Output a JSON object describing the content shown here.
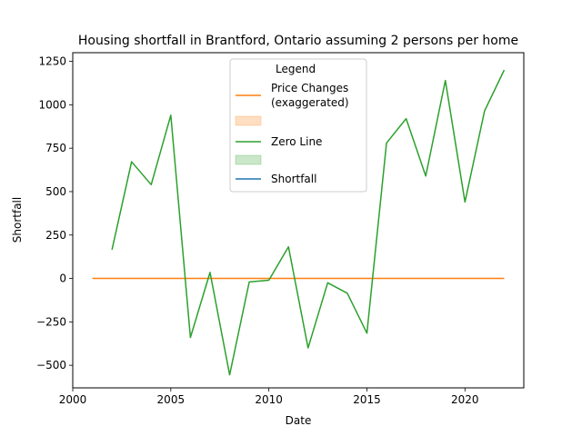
{
  "chart_data": {
    "type": "line",
    "title": "Housing shortfall in Brantford, Ontario assuming 2 persons per home",
    "xlabel": "Date",
    "ylabel": "Shortfall",
    "xlim": [
      2000,
      2023
    ],
    "ylim": [
      -630,
      1300
    ],
    "xticks": [
      2000,
      2005,
      2010,
      2015,
      2020
    ],
    "xtick_labels": [
      "2000",
      "2005",
      "2010",
      "2015",
      "2020"
    ],
    "yticks": [
      -500,
      -250,
      0,
      250,
      500,
      750,
      1000,
      1250
    ],
    "ytick_labels": [
      "−500",
      "−250",
      "0",
      "250",
      "500",
      "750",
      "1000",
      "1250"
    ],
    "grid": false,
    "legend": {
      "title": "Legend",
      "placement": "upper-center",
      "entries": [
        {
          "kind": "line",
          "label_lines": [
            "Price Changes",
            "(exaggerated)"
          ],
          "color": "#ff7f0e"
        },
        {
          "kind": "patch",
          "label_lines": [],
          "color": "#ff7f0e"
        },
        {
          "kind": "line",
          "label_lines": [
            "Zero Line"
          ],
          "color": "#2ca02c"
        },
        {
          "kind": "patch",
          "label_lines": [],
          "color": "#2ca02c"
        },
        {
          "kind": "line",
          "label_lines": [
            "Shortfall"
          ],
          "color": "#1f77b4"
        }
      ]
    },
    "series": [
      {
        "color": "#ff7f0e",
        "x": [
          2001,
          2022
        ],
        "y": [
          0,
          0
        ]
      },
      {
        "color": "#2ca02c",
        "x": [
          2002,
          2003,
          2004,
          2005,
          2006,
          2007,
          2008,
          2009,
          2010,
          2011,
          2012,
          2013,
          2014,
          2015,
          2016,
          2017,
          2018,
          2019,
          2020,
          2021,
          2022
        ],
        "y": [
          165,
          672,
          540,
          940,
          -340,
          35,
          -555,
          -20,
          -10,
          182,
          -400,
          -25,
          -85,
          -315,
          780,
          920,
          590,
          1140,
          440,
          965,
          1200
        ]
      }
    ]
  }
}
